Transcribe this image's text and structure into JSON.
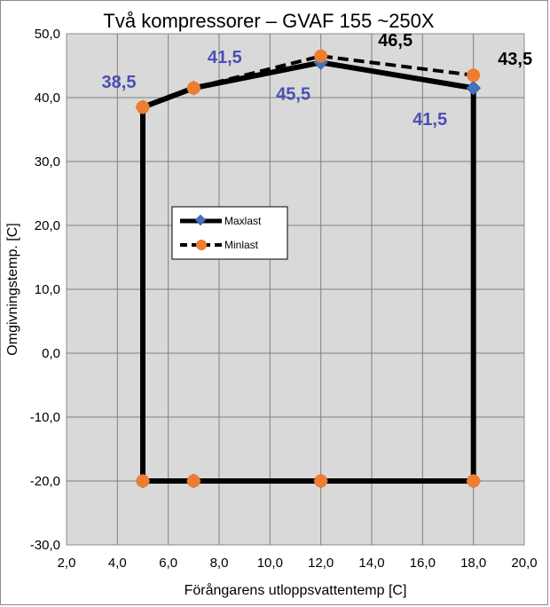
{
  "chart_data": {
    "type": "line",
    "title": "Två kompressorer – GVAF 155 ~250X",
    "xlabel": "Förångarens utloppsvattentemp [C]",
    "ylabel": "Omgivningstemp. [C]",
    "xlim": [
      2,
      20
    ],
    "ylim": [
      -30,
      50
    ],
    "x_ticks": [
      "2,0",
      "4,0",
      "6,0",
      "8,0",
      "10,0",
      "12,0",
      "14,0",
      "16,0",
      "18,0",
      "20,0"
    ],
    "y_ticks": [
      "50,0",
      "40,0",
      "30,0",
      "20,0",
      "10,0",
      "0,0",
      "-10,0",
      "-20,0",
      "-30,0"
    ],
    "grid": true,
    "legend_position": "center-left",
    "series": [
      {
        "name": "Maxlast",
        "line_style": "solid",
        "line_color": "#000000",
        "marker": "diamond",
        "marker_color": "#4472c4",
        "points": [
          {
            "x": 5,
            "y": -20
          },
          {
            "x": 7,
            "y": -20
          },
          {
            "x": 12,
            "y": -20
          },
          {
            "x": 18,
            "y": -20
          },
          {
            "x": 18,
            "y": 41.5
          },
          {
            "x": 12,
            "y": 45.5
          },
          {
            "x": 7,
            "y": 41.5
          },
          {
            "x": 5,
            "y": 38.5
          },
          {
            "x": 5,
            "y": -20
          }
        ]
      },
      {
        "name": "Minlast",
        "line_style": "dashed",
        "line_color": "#000000",
        "marker": "circle",
        "marker_color": "#ed7d31",
        "points": [
          {
            "x": 5,
            "y": -20
          },
          {
            "x": 7,
            "y": -20
          },
          {
            "x": 12,
            "y": -20
          },
          {
            "x": 18,
            "y": -20
          },
          {
            "x": 18,
            "y": 43.5
          },
          {
            "x": 12,
            "y": 46.5
          },
          {
            "x": 7,
            "y": 41.5
          },
          {
            "x": 5,
            "y": 38.5
          },
          {
            "x": 5,
            "y": -20
          }
        ]
      }
    ],
    "annotations": [
      {
        "text": "38,5",
        "color": "#4a4fb5"
      },
      {
        "text": "41,5",
        "color": "#4a4fb5"
      },
      {
        "text": "45,5",
        "color": "#4a4fb5"
      },
      {
        "text": "41,5",
        "color": "#4a4fb5"
      },
      {
        "text": "46,5",
        "color": "#000000"
      },
      {
        "text": "43,5",
        "color": "#000000"
      }
    ]
  }
}
